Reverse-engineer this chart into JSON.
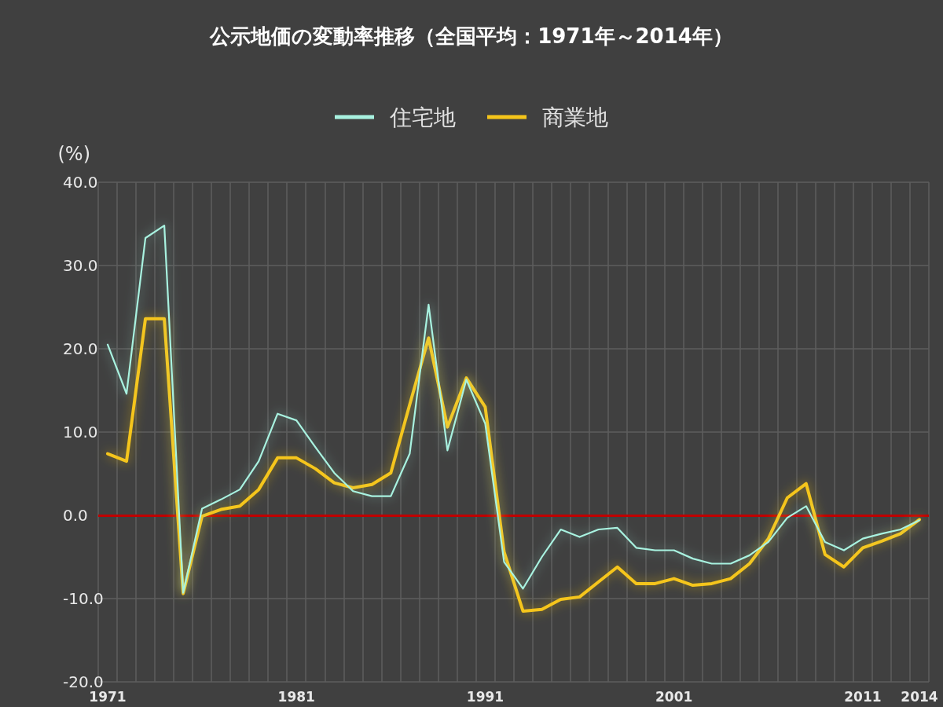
{
  "chart_data": {
    "type": "line",
    "title": "公示地価の変動率推移（全国平均：1971年～2014年）",
    "ylabel": "(%)",
    "categories": [
      "1971",
      null,
      null,
      null,
      null,
      null,
      null,
      null,
      null,
      null,
      "1981",
      null,
      null,
      null,
      null,
      null,
      null,
      null,
      null,
      null,
      "1991",
      null,
      null,
      null,
      null,
      null,
      null,
      null,
      null,
      null,
      "2001",
      null,
      null,
      null,
      null,
      null,
      null,
      null,
      null,
      null,
      "2011",
      null,
      null,
      "2014"
    ],
    "series": [
      {
        "name": "住宅地",
        "color": "#a8f2e0",
        "values": [
          20.5,
          14.6,
          33.3,
          34.8,
          -9.3,
          0.8,
          1.9,
          3.1,
          6.5,
          12.2,
          11.4,
          8.2,
          5.1,
          2.9,
          2.3,
          2.3,
          7.4,
          25.3,
          7.8,
          16.3,
          11.0,
          -5.6,
          -8.8,
          -5.0,
          -1.7,
          -2.6,
          -1.7,
          -1.5,
          -3.9,
          -4.2,
          -4.2,
          -5.2,
          -5.8,
          -5.8,
          -4.8,
          -3.2,
          -0.3,
          1.1,
          -3.2,
          -4.2,
          -2.8,
          -2.2,
          -1.7,
          -0.6
        ]
      },
      {
        "name": "商業地",
        "color": "#f5c51a",
        "values": [
          7.4,
          6.5,
          23.6,
          23.6,
          -9.4,
          -0.1,
          0.7,
          1.1,
          3.1,
          6.9,
          6.9,
          5.6,
          3.9,
          3.3,
          3.7,
          5.1,
          13.3,
          21.3,
          10.6,
          16.5,
          13.0,
          -4.4,
          -11.5,
          -11.3,
          -10.1,
          -9.8,
          -8.0,
          -6.2,
          -8.2,
          -8.2,
          -7.6,
          -8.4,
          -8.2,
          -7.6,
          -5.8,
          -2.8,
          2.1,
          3.8,
          -4.7,
          -6.2,
          -3.9,
          -3.1,
          -2.2,
          -0.5
        ]
      }
    ],
    "ylim": [
      -20,
      40
    ],
    "yticks": [
      {
        "value": -20,
        "label": "-20.0"
      },
      {
        "value": -10,
        "label": "-10.0"
      },
      {
        "value": 0,
        "label": "0.0"
      },
      {
        "value": 10,
        "label": "10.0"
      },
      {
        "value": 20,
        "label": "20.0"
      },
      {
        "value": 30,
        "label": "30.0"
      },
      {
        "value": 40,
        "label": "40.0"
      }
    ],
    "ref_lines": [
      {
        "axis": "y",
        "value": 0,
        "color": "#c00000"
      }
    ],
    "grid": true,
    "legend": "top",
    "marker": "none",
    "line_style": "solid"
  }
}
